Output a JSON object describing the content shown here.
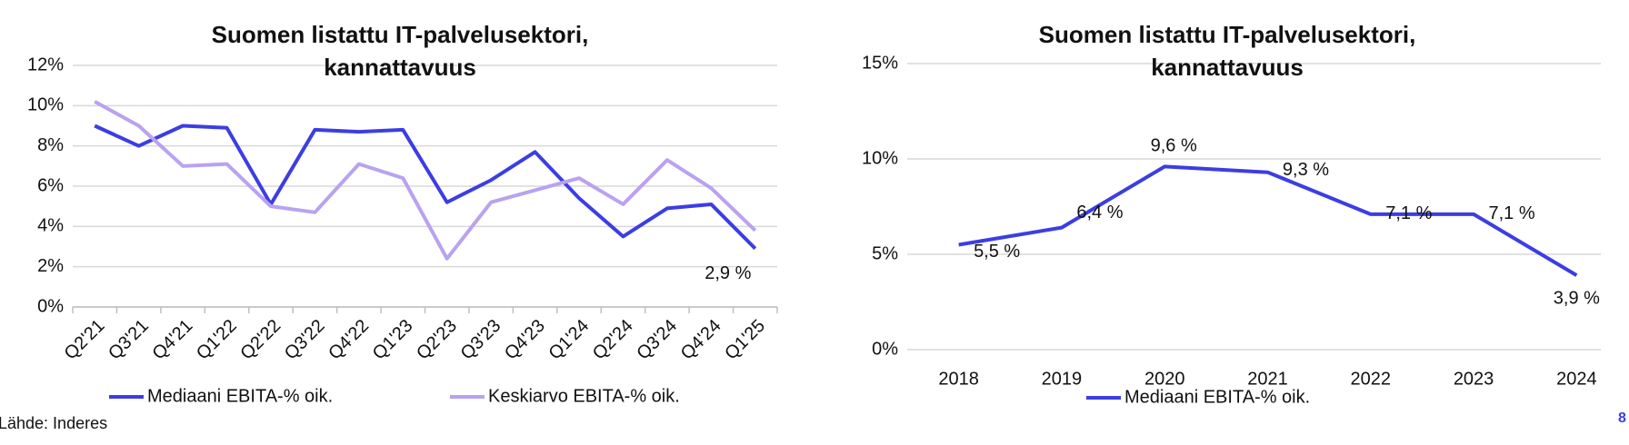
{
  "chart_data": [
    {
      "type": "line",
      "title": "Suomen listattu IT-palvelusektori, kannattavuus",
      "categories": [
        "Q2'21",
        "Q3'21",
        "Q4'21",
        "Q1'22",
        "Q2'22",
        "Q3'22",
        "Q4'22",
        "Q1'23",
        "Q2'23",
        "Q3'23",
        "Q4'23",
        "Q1'24",
        "Q2'24",
        "Q3'24",
        "Q4'24",
        "Q1'25"
      ],
      "series": [
        {
          "name": "Mediaani EBITA-% oik.",
          "color": "#3d3de3",
          "values": [
            9.0,
            8.0,
            9.0,
            8.9,
            5.1,
            8.8,
            8.7,
            8.8,
            5.2,
            6.3,
            7.7,
            5.4,
            3.5,
            4.9,
            5.1,
            2.9
          ],
          "value_labels": [
            null,
            null,
            null,
            null,
            null,
            null,
            null,
            null,
            null,
            null,
            null,
            null,
            null,
            null,
            null,
            "2,9 %"
          ]
        },
        {
          "name": "Keskiarvo EBITA-% oik.",
          "color": "#b9a2f0",
          "values": [
            10.2,
            9.0,
            7.0,
            7.1,
            5.0,
            4.7,
            7.1,
            6.4,
            2.4,
            5.2,
            5.8,
            6.4,
            5.1,
            7.3,
            5.9,
            3.8
          ]
        }
      ],
      "ylim": [
        0,
        12
      ],
      "yticks": [
        {
          "value": 0,
          "label": "0%"
        },
        {
          "value": 2,
          "label": "2%"
        },
        {
          "value": 4,
          "label": "4%"
        },
        {
          "value": 6,
          "label": "6%"
        },
        {
          "value": 8,
          "label": "8%"
        },
        {
          "value": 10,
          "label": "10%"
        },
        {
          "value": 12,
          "label": "12%"
        }
      ],
      "grid": true
    },
    {
      "type": "line",
      "title": "Suomen listattu IT-palvelusektori, kannattavuus",
      "categories": [
        "2018",
        "2019",
        "2020",
        "2021",
        "2022",
        "2023",
        "2024"
      ],
      "series": [
        {
          "name": "Mediaani EBITA-% oik.",
          "color": "#3d3de3",
          "values": [
            5.5,
            6.4,
            9.6,
            9.3,
            7.1,
            7.1,
            3.9
          ],
          "value_labels": [
            "5,5 %",
            "6,4 %",
            "9,6 %",
            "9,3 %",
            "7,1 %",
            "7,1 %",
            "3,9 %"
          ]
        }
      ],
      "ylim": [
        0,
        15
      ],
      "yticks": [
        {
          "value": 0,
          "label": "0%"
        },
        {
          "value": 5,
          "label": "5%"
        },
        {
          "value": 10,
          "label": "10%"
        },
        {
          "value": 15,
          "label": "15%"
        }
      ],
      "grid": true
    }
  ],
  "source": "Lähde: Inderes",
  "page_number": "8"
}
